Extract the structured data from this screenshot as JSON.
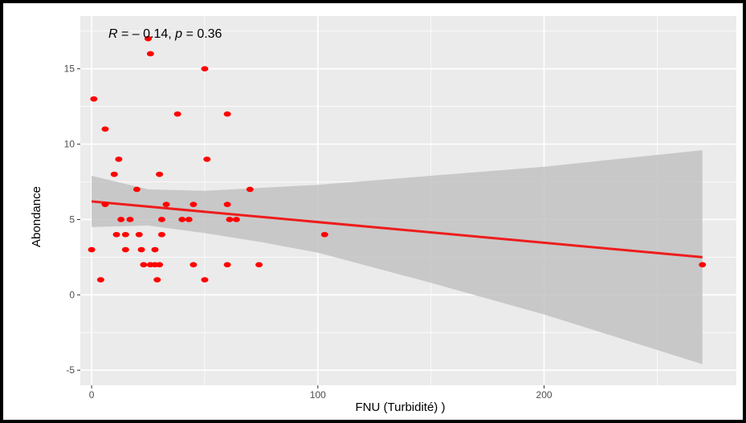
{
  "chart_data": {
    "type": "scatter",
    "title": "",
    "xlabel": "FNU (Turbidité) )",
    "ylabel": "Abondance",
    "xlim": [
      -5,
      285
    ],
    "ylim": [
      -6,
      18.5
    ],
    "x_ticks": [
      0,
      100,
      200
    ],
    "y_ticks": [
      -5,
      0,
      5,
      10,
      15
    ],
    "x_tick_labels": [
      "0",
      "100",
      "200"
    ],
    "y_tick_labels": [
      "-5",
      "0",
      "5",
      "10",
      "15"
    ],
    "grid": true,
    "legend": "none",
    "annotation": {
      "r_symbol": "R",
      "r_text": " = – 0.14, ",
      "p_symbol": "p",
      "p_text": " = 0.36"
    },
    "colors": {
      "panel": "#ebebeb",
      "grid": "#ffffff",
      "points": "#ff0000",
      "fit_line": "#ee1c1c",
      "confidence_band": "#bfbfbf"
    },
    "points": [
      {
        "x": 0,
        "y": 3
      },
      {
        "x": 1,
        "y": 13
      },
      {
        "x": 4,
        "y": 1
      },
      {
        "x": 6,
        "y": 11
      },
      {
        "x": 6,
        "y": 6
      },
      {
        "x": 10,
        "y": 8
      },
      {
        "x": 11,
        "y": 4
      },
      {
        "x": 12,
        "y": 9
      },
      {
        "x": 13,
        "y": 5
      },
      {
        "x": 15,
        "y": 4
      },
      {
        "x": 15,
        "y": 3
      },
      {
        "x": 17,
        "y": 5
      },
      {
        "x": 20,
        "y": 7
      },
      {
        "x": 21,
        "y": 4
      },
      {
        "x": 22,
        "y": 3
      },
      {
        "x": 23,
        "y": 2
      },
      {
        "x": 25,
        "y": 17
      },
      {
        "x": 26,
        "y": 16
      },
      {
        "x": 26,
        "y": 2
      },
      {
        "x": 28,
        "y": 3
      },
      {
        "x": 28,
        "y": 2
      },
      {
        "x": 29,
        "y": 1
      },
      {
        "x": 30,
        "y": 8
      },
      {
        "x": 30,
        "y": 2
      },
      {
        "x": 31,
        "y": 5
      },
      {
        "x": 31,
        "y": 4
      },
      {
        "x": 33,
        "y": 6
      },
      {
        "x": 38,
        "y": 12
      },
      {
        "x": 40,
        "y": 5
      },
      {
        "x": 43,
        "y": 5
      },
      {
        "x": 45,
        "y": 6
      },
      {
        "x": 45,
        "y": 2
      },
      {
        "x": 50,
        "y": 15
      },
      {
        "x": 50,
        "y": 1
      },
      {
        "x": 51,
        "y": 9
      },
      {
        "x": 60,
        "y": 12
      },
      {
        "x": 60,
        "y": 6
      },
      {
        "x": 60,
        "y": 2
      },
      {
        "x": 61,
        "y": 5
      },
      {
        "x": 64,
        "y": 5
      },
      {
        "x": 70,
        "y": 7
      },
      {
        "x": 74,
        "y": 2
      },
      {
        "x": 103,
        "y": 4
      },
      {
        "x": 270,
        "y": 2
      }
    ],
    "fit_line": {
      "x": [
        0,
        270
      ],
      "y": [
        6.2,
        2.5
      ]
    },
    "confidence_band": {
      "x": [
        0,
        25,
        50,
        75,
        100,
        150,
        200,
        270
      ],
      "upper": [
        7.9,
        7.0,
        6.9,
        7.1,
        7.3,
        7.9,
        8.5,
        9.6
      ],
      "lower": [
        4.5,
        4.6,
        4.1,
        3.5,
        2.8,
        0.8,
        -1.3,
        -4.6
      ]
    }
  }
}
